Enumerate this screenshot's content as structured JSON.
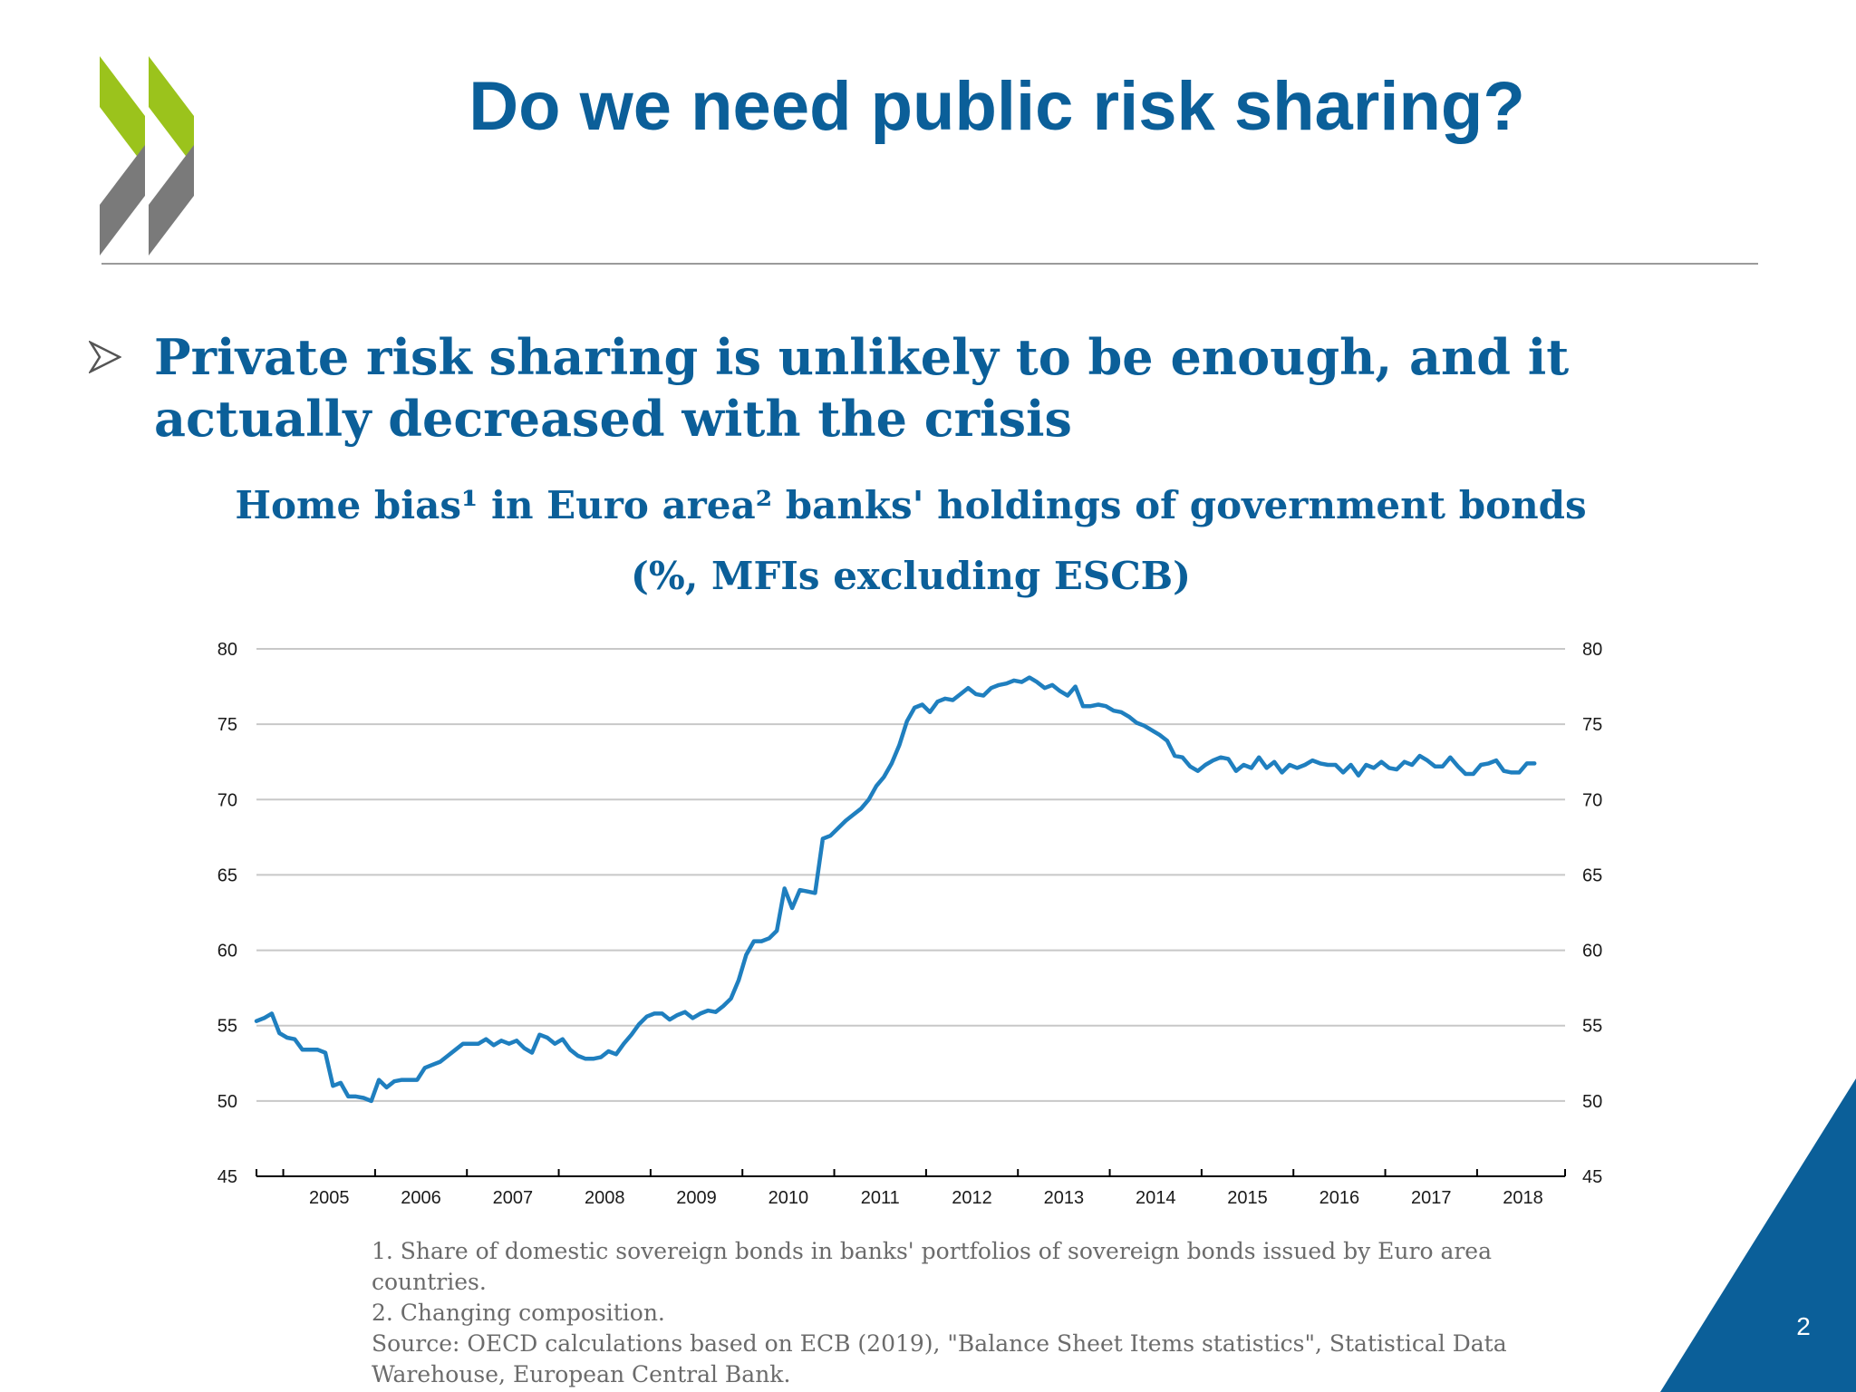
{
  "slide": {
    "title": "Do we need public risk sharing?",
    "page_number": "2"
  },
  "bullet": {
    "text": "Private risk sharing is unlikely to be enough, and it actually decreased with the crisis"
  },
  "notes": {
    "note_1": "1. Share of domestic sovereign bonds in banks' portfolios of sovereign bonds issued by Euro area countries.",
    "note_2": "2. Changing composition.",
    "source": "Source: OECD calculations based on ECB (2019), \"Balance Sheet Items statistics\", Statistical Data Warehouse, European Central Bank."
  },
  "colors": {
    "title": "#0b5f99",
    "line": "#1f7fbf",
    "grid": "#c8c8c8",
    "logo_green": "#9bc31c",
    "logo_gray": "#7a7a7a",
    "corner": "#0b5f99"
  },
  "chart_data": {
    "type": "line",
    "title": "Home bias¹ in Euro area² banks' holdings of government bonds",
    "subtitle": "(%, MFIs excluding ESCB)",
    "ylim": [
      45,
      80
    ],
    "xlim": [
      "2004-09",
      "2018-12"
    ],
    "yticks": [
      45,
      50,
      55,
      60,
      65,
      70,
      75,
      80
    ],
    "xtick_labels": [
      "2005",
      "2006",
      "2007",
      "2008",
      "2009",
      "2010",
      "2011",
      "2012",
      "2013",
      "2014",
      "2015",
      "2016",
      "2017",
      "2018"
    ],
    "grid": true,
    "right_axis": true,
    "series": [
      {
        "points": [
          [
            "2004-09",
            55.3
          ],
          [
            "2004-10",
            55.5
          ],
          [
            "2004-11",
            55.8
          ],
          [
            "2004-12",
            54.5
          ],
          [
            "2005-01",
            54.2
          ],
          [
            "2005-02",
            54.1
          ],
          [
            "2005-03",
            53.4
          ],
          [
            "2005-04",
            53.4
          ],
          [
            "2005-05",
            53.4
          ],
          [
            "2005-06",
            53.2
          ],
          [
            "2005-07",
            51.0
          ],
          [
            "2005-08",
            51.2
          ],
          [
            "2005-09",
            50.3
          ],
          [
            "2005-10",
            50.3
          ],
          [
            "2005-11",
            50.2
          ],
          [
            "2005-12",
            50.0
          ],
          [
            "2006-01",
            51.4
          ],
          [
            "2006-02",
            50.9
          ],
          [
            "2006-03",
            51.3
          ],
          [
            "2006-04",
            51.4
          ],
          [
            "2006-05",
            51.4
          ],
          [
            "2006-06",
            51.4
          ],
          [
            "2006-07",
            52.2
          ],
          [
            "2006-08",
            52.4
          ],
          [
            "2006-09",
            52.6
          ],
          [
            "2006-10",
            53.0
          ],
          [
            "2006-11",
            53.4
          ],
          [
            "2006-12",
            53.8
          ],
          [
            "2007-01",
            53.8
          ],
          [
            "2007-02",
            53.8
          ],
          [
            "2007-03",
            54.1
          ],
          [
            "2007-04",
            53.7
          ],
          [
            "2007-05",
            54.0
          ],
          [
            "2007-06",
            53.8
          ],
          [
            "2007-07",
            54.0
          ],
          [
            "2007-08",
            53.5
          ],
          [
            "2007-09",
            53.2
          ],
          [
            "2007-10",
            54.4
          ],
          [
            "2007-11",
            54.2
          ],
          [
            "2007-12",
            53.8
          ],
          [
            "2008-01",
            54.1
          ],
          [
            "2008-02",
            53.4
          ],
          [
            "2008-03",
            53.0
          ],
          [
            "2008-04",
            52.8
          ],
          [
            "2008-05",
            52.8
          ],
          [
            "2008-06",
            52.9
          ],
          [
            "2008-07",
            53.3
          ],
          [
            "2008-08",
            53.1
          ],
          [
            "2008-09",
            53.8
          ],
          [
            "2008-10",
            54.4
          ],
          [
            "2008-11",
            55.1
          ],
          [
            "2008-12",
            55.6
          ],
          [
            "2009-01",
            55.8
          ],
          [
            "2009-02",
            55.8
          ],
          [
            "2009-03",
            55.4
          ],
          [
            "2009-04",
            55.7
          ],
          [
            "2009-05",
            55.9
          ],
          [
            "2009-06",
            55.5
          ],
          [
            "2009-07",
            55.8
          ],
          [
            "2009-08",
            56.0
          ],
          [
            "2009-09",
            55.9
          ],
          [
            "2009-10",
            56.3
          ],
          [
            "2009-11",
            56.8
          ],
          [
            "2009-12",
            58.0
          ],
          [
            "2010-01",
            59.7
          ],
          [
            "2010-02",
            60.6
          ],
          [
            "2010-03",
            60.6
          ],
          [
            "2010-04",
            60.8
          ],
          [
            "2010-05",
            61.3
          ],
          [
            "2010-06",
            64.1
          ],
          [
            "2010-07",
            62.8
          ],
          [
            "2010-08",
            64.0
          ],
          [
            "2010-09",
            63.9
          ],
          [
            "2010-10",
            63.8
          ],
          [
            "2010-11",
            67.4
          ],
          [
            "2010-12",
            67.6
          ],
          [
            "2011-01",
            68.1
          ],
          [
            "2011-02",
            68.6
          ],
          [
            "2011-03",
            69.0
          ],
          [
            "2011-04",
            69.4
          ],
          [
            "2011-05",
            70.0
          ],
          [
            "2011-06",
            70.9
          ],
          [
            "2011-07",
            71.5
          ],
          [
            "2011-08",
            72.4
          ],
          [
            "2011-09",
            73.6
          ],
          [
            "2011-10",
            75.2
          ],
          [
            "2011-11",
            76.1
          ],
          [
            "2011-12",
            76.3
          ],
          [
            "2012-01",
            75.8
          ],
          [
            "2012-02",
            76.5
          ],
          [
            "2012-03",
            76.7
          ],
          [
            "2012-04",
            76.6
          ],
          [
            "2012-05",
            77.0
          ],
          [
            "2012-06",
            77.4
          ],
          [
            "2012-07",
            77.0
          ],
          [
            "2012-08",
            76.9
          ],
          [
            "2012-09",
            77.4
          ],
          [
            "2012-10",
            77.6
          ],
          [
            "2012-11",
            77.7
          ],
          [
            "2012-12",
            77.9
          ],
          [
            "2013-01",
            77.8
          ],
          [
            "2013-02",
            78.1
          ],
          [
            "2013-03",
            77.8
          ],
          [
            "2013-04",
            77.4
          ],
          [
            "2013-05",
            77.6
          ],
          [
            "2013-06",
            77.2
          ],
          [
            "2013-07",
            76.9
          ],
          [
            "2013-08",
            77.5
          ],
          [
            "2013-09",
            76.2
          ],
          [
            "2013-10",
            76.2
          ],
          [
            "2013-11",
            76.3
          ],
          [
            "2013-12",
            76.2
          ],
          [
            "2014-01",
            75.9
          ],
          [
            "2014-02",
            75.8
          ],
          [
            "2014-03",
            75.5
          ],
          [
            "2014-04",
            75.1
          ],
          [
            "2014-05",
            74.9
          ],
          [
            "2014-06",
            74.6
          ],
          [
            "2014-07",
            74.3
          ],
          [
            "2014-08",
            73.9
          ],
          [
            "2014-09",
            72.9
          ],
          [
            "2014-10",
            72.8
          ],
          [
            "2014-11",
            72.2
          ],
          [
            "2014-12",
            71.9
          ],
          [
            "2015-01",
            72.3
          ],
          [
            "2015-02",
            72.6
          ],
          [
            "2015-03",
            72.8
          ],
          [
            "2015-04",
            72.7
          ],
          [
            "2015-05",
            71.9
          ],
          [
            "2015-06",
            72.3
          ],
          [
            "2015-07",
            72.1
          ],
          [
            "2015-08",
            72.8
          ],
          [
            "2015-09",
            72.1
          ],
          [
            "2015-10",
            72.5
          ],
          [
            "2015-11",
            71.8
          ],
          [
            "2015-12",
            72.3
          ],
          [
            "2016-01",
            72.1
          ],
          [
            "2016-02",
            72.3
          ],
          [
            "2016-03",
            72.6
          ],
          [
            "2016-04",
            72.4
          ],
          [
            "2016-05",
            72.3
          ],
          [
            "2016-06",
            72.3
          ],
          [
            "2016-07",
            71.8
          ],
          [
            "2016-08",
            72.3
          ],
          [
            "2016-09",
            71.6
          ],
          [
            "2016-10",
            72.3
          ],
          [
            "2016-11",
            72.1
          ],
          [
            "2016-12",
            72.5
          ],
          [
            "2017-01",
            72.1
          ],
          [
            "2017-02",
            72.0
          ],
          [
            "2017-03",
            72.5
          ],
          [
            "2017-04",
            72.3
          ],
          [
            "2017-05",
            72.9
          ],
          [
            "2017-06",
            72.6
          ],
          [
            "2017-07",
            72.2
          ],
          [
            "2017-08",
            72.2
          ],
          [
            "2017-09",
            72.8
          ],
          [
            "2017-10",
            72.2
          ],
          [
            "2017-11",
            71.7
          ],
          [
            "2017-12",
            71.7
          ],
          [
            "2018-01",
            72.3
          ],
          [
            "2018-02",
            72.4
          ],
          [
            "2018-03",
            72.6
          ],
          [
            "2018-04",
            71.9
          ],
          [
            "2018-05",
            71.8
          ],
          [
            "2018-06",
            71.8
          ],
          [
            "2018-07",
            72.4
          ],
          [
            "2018-08",
            72.4
          ]
        ]
      }
    ]
  }
}
